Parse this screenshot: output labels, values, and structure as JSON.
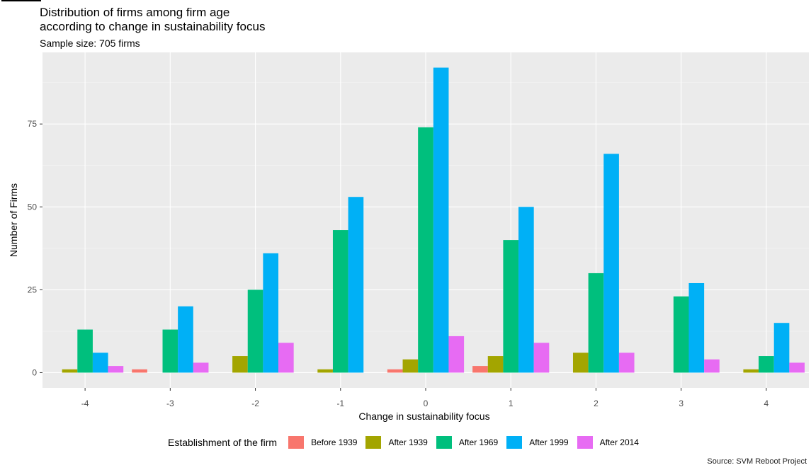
{
  "chart_data": {
    "type": "bar",
    "title_lines": [
      "Distribution of firms among firm age",
      "according to change in sustainability focus"
    ],
    "subtitle": "Sample size: 705 firms",
    "xlabel": "Change in sustainability focus",
    "ylabel": "Number of Firms",
    "categories": [
      "-4",
      "-3",
      "-2",
      "-1",
      "0",
      "1",
      "2",
      "3",
      "4"
    ],
    "yticks": [
      0,
      25,
      50,
      75
    ],
    "ylim": [
      -4.6,
      96.6
    ],
    "grid": true,
    "legend_placement": "bottom",
    "legend_title": "Establishment of the firm",
    "series": [
      {
        "name": "Before 1939",
        "color": "#F8766D",
        "values": [
          0,
          1,
          0,
          0,
          1,
          2,
          0,
          0,
          0
        ]
      },
      {
        "name": "After 1939",
        "color": "#A3A500",
        "values": [
          1,
          0,
          5,
          1,
          4,
          5,
          6,
          0,
          1
        ]
      },
      {
        "name": "After 1969",
        "color": "#00BF7D",
        "values": [
          13,
          13,
          25,
          43,
          74,
          40,
          30,
          23,
          5
        ]
      },
      {
        "name": "After 1999",
        "color": "#00B0F6",
        "values": [
          6,
          20,
          36,
          53,
          92,
          50,
          66,
          27,
          15
        ]
      },
      {
        "name": "After 2014",
        "color": "#E76BF3",
        "values": [
          2,
          3,
          9,
          0,
          11,
          9,
          6,
          4,
          3
        ]
      }
    ],
    "source": "Source: SVM Reboot Project"
  }
}
